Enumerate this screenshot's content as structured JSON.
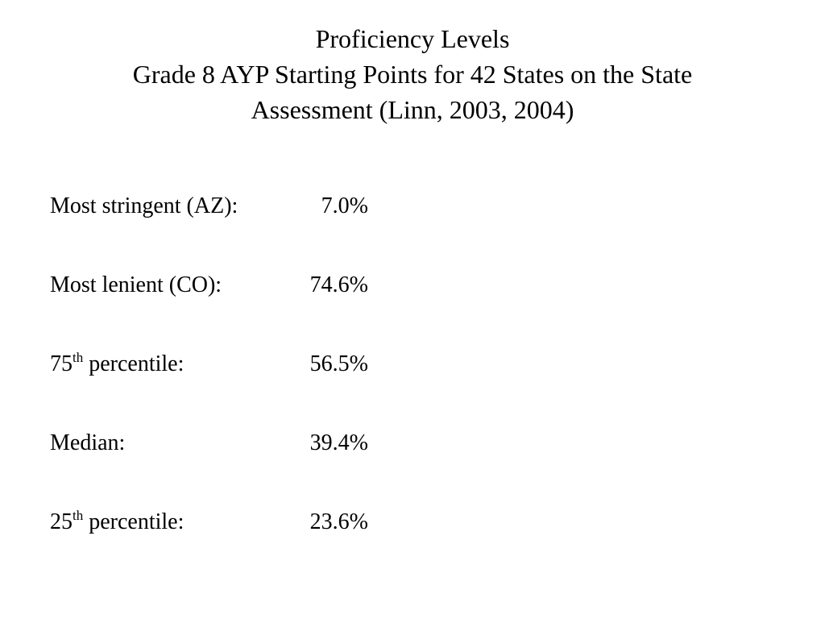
{
  "title": {
    "line1": "Proficiency Levels",
    "line2": "Grade 8 AYP Starting Points for 42 States on the State",
    "line3": "Assessment (Linn, 2003, 2004)"
  },
  "rows": [
    {
      "label": "Most stringent (AZ):",
      "value": "7.0%"
    },
    {
      "label": "Most lenient (CO):",
      "value": "74.6%"
    },
    {
      "label_num": "75",
      "label_sup": "th",
      "label_rest": " percentile:",
      "value": "56.5%"
    },
    {
      "label": "Median:",
      "value": "39.4%"
    },
    {
      "label_num": "25",
      "label_sup": "th",
      "label_rest": " percentile:",
      "value": "23.6%"
    }
  ]
}
